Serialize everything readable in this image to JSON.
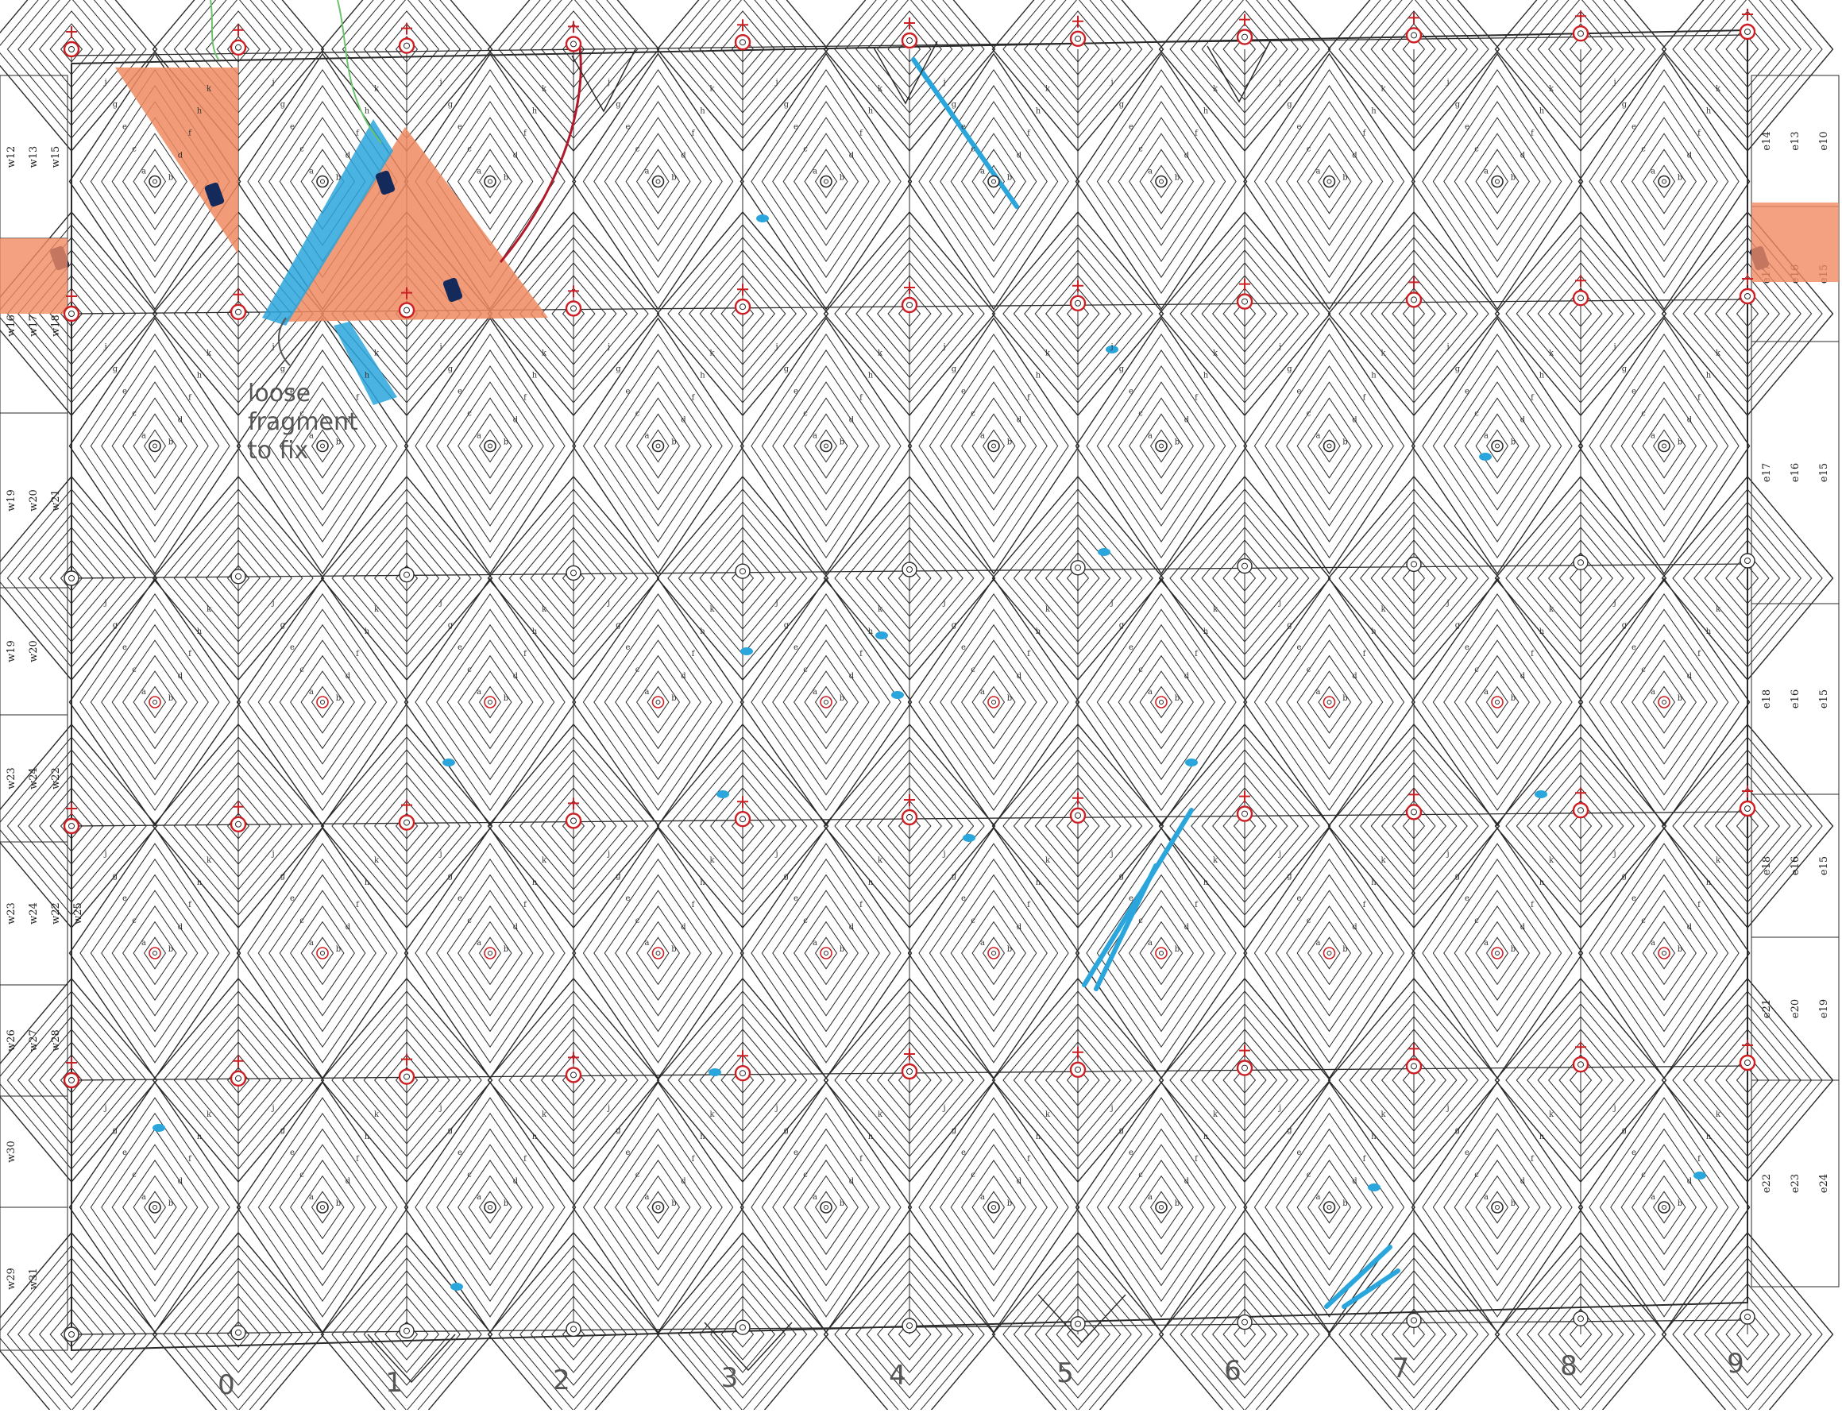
{
  "drawing": {
    "bottom_column_labels": [
      "0",
      "1",
      "2",
      "3",
      "4",
      "5",
      "6",
      "7",
      "8",
      "9"
    ],
    "west_labels": [
      [
        "w12",
        "w13",
        "w15"
      ],
      [
        "w16",
        "w17",
        "w18"
      ],
      [
        "w19",
        "w20",
        "w21"
      ],
      [
        "w19",
        "w20"
      ],
      [
        "w23",
        "w24",
        "w22"
      ],
      [
        "w23",
        "w24",
        "w22",
        "w25"
      ],
      [
        "w26",
        "w27",
        "w28"
      ],
      [
        "w30"
      ],
      [
        "w29",
        "w31"
      ]
    ],
    "east_labels": [
      [
        "e14",
        "e13",
        "e10"
      ],
      [
        "e17",
        "e16",
        "e15"
      ],
      [
        "e17",
        "e16",
        "e15"
      ],
      [
        "e18",
        "e16",
        "e15"
      ],
      [
        "e18",
        "e16",
        "e15"
      ],
      [
        "e21",
        "e20",
        "e19"
      ],
      [
        "e22",
        "e23",
        "e24"
      ]
    ],
    "note": [
      "loose",
      "fragment",
      "to fix"
    ],
    "letters": [
      "a",
      "b",
      "c",
      "d",
      "e",
      "f",
      "g",
      "h",
      "j",
      "k"
    ],
    "colors": {
      "line": "#2a2a2a",
      "red_mark": "#cc1f24",
      "blue_wear": "#2aa6dc",
      "orange_loss": "#f08a62",
      "green_note": "#6bc46b",
      "pencil": "#555555"
    }
  }
}
